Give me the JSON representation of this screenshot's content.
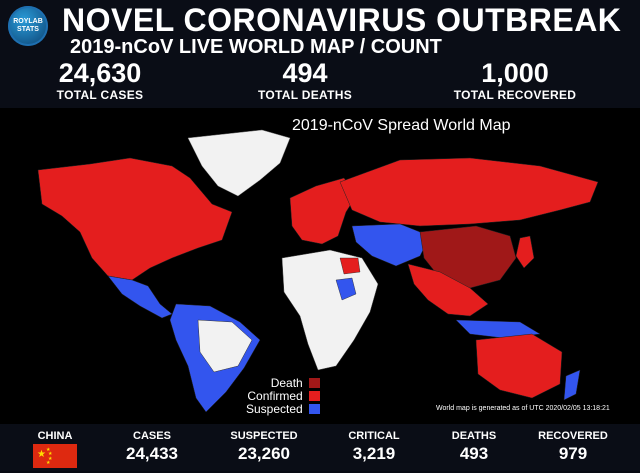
{
  "logo": {
    "line1": "ROYLAB",
    "line2": "STATS"
  },
  "header": {
    "title": "NOVEL CORONAVIRUS OUTBREAK",
    "subtitle": "2019-nCoV LIVE WORLD MAP / COUNT"
  },
  "totals": [
    {
      "value": "24,630",
      "label": "TOTAL CASES"
    },
    {
      "value": "494",
      "label": "TOTAL DEATHS"
    },
    {
      "value": "1,000",
      "label": "TOTAL RECOVERED"
    }
  ],
  "map": {
    "title": "2019-nCoV Spread World Map",
    "legend": [
      {
        "label": "Death",
        "color": "#a01818"
      },
      {
        "label": "Confirmed",
        "color": "#e41e1e"
      },
      {
        "label": "Suspected",
        "color": "#3355ee"
      }
    ],
    "note": "World map is generated as of UTC 2020/02/05 13:18:21",
    "colors": {
      "death": "#a01818",
      "confirmed": "#e41e1e",
      "suspected": "#3355ee",
      "none": "#f2f2f2"
    }
  },
  "footer": {
    "country": "CHINA",
    "columns": [
      {
        "label": "CASES",
        "value": "24,433"
      },
      {
        "label": "SUSPECTED",
        "value": "23,260"
      },
      {
        "label": "CRITICAL",
        "value": "3,219"
      },
      {
        "label": "DEATHS",
        "value": "493"
      },
      {
        "label": "RECOVERED",
        "value": "979"
      }
    ]
  }
}
